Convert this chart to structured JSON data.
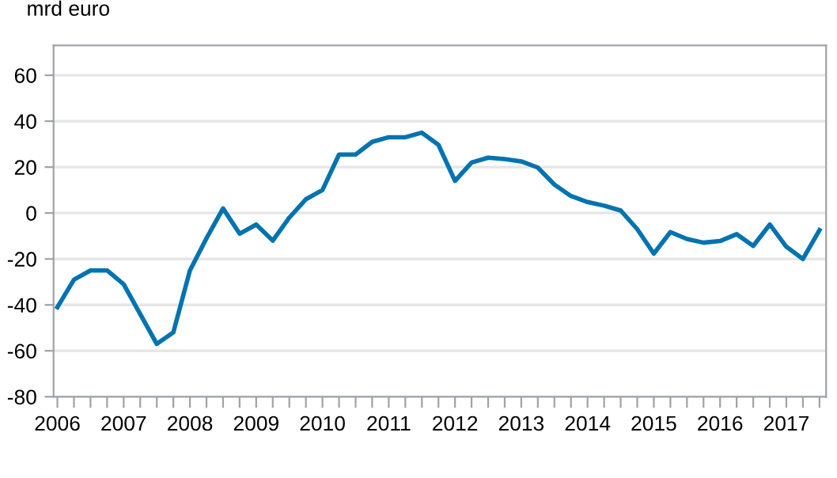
{
  "chart_data": {
    "type": "line",
    "ylabel": "mrd euro",
    "categories": [
      "2006",
      null,
      null,
      null,
      "2007",
      null,
      null,
      null,
      "2008",
      null,
      null,
      null,
      "2009",
      null,
      null,
      null,
      "2010",
      null,
      null,
      null,
      "2011",
      null,
      null,
      null,
      "2012",
      null,
      null,
      null,
      "2013",
      null,
      null,
      null,
      "2014",
      null,
      null,
      null,
      "2015",
      null,
      null,
      null,
      "2016",
      null,
      null,
      null,
      "2017",
      null,
      null
    ],
    "series": [
      {
        "color": "#0073b0",
        "values": [
          -41,
          -29,
          -25,
          -25,
          -31,
          -44,
          -57,
          -52,
          -25,
          -11,
          2,
          -9,
          -5,
          -12,
          -2,
          6,
          10,
          25.5,
          25.5,
          31,
          33,
          33,
          35,
          29.7,
          14,
          22,
          24.1,
          23.5,
          22.5,
          19.8,
          12.4,
          7.4,
          4.8,
          3.2,
          1.1,
          -7,
          -17.7,
          -8.3,
          -11.3,
          -12.9,
          -12.2,
          -9.2,
          -14.3,
          -5,
          -14.7,
          -20,
          -7.4
        ]
      }
    ],
    "ylim": [
      -80,
      73
    ],
    "yticks": [
      -80,
      -60,
      -40,
      -20,
      0,
      20,
      40,
      60
    ],
    "grid": "y",
    "legend": false,
    "marker": "none",
    "line_style": "solid"
  }
}
